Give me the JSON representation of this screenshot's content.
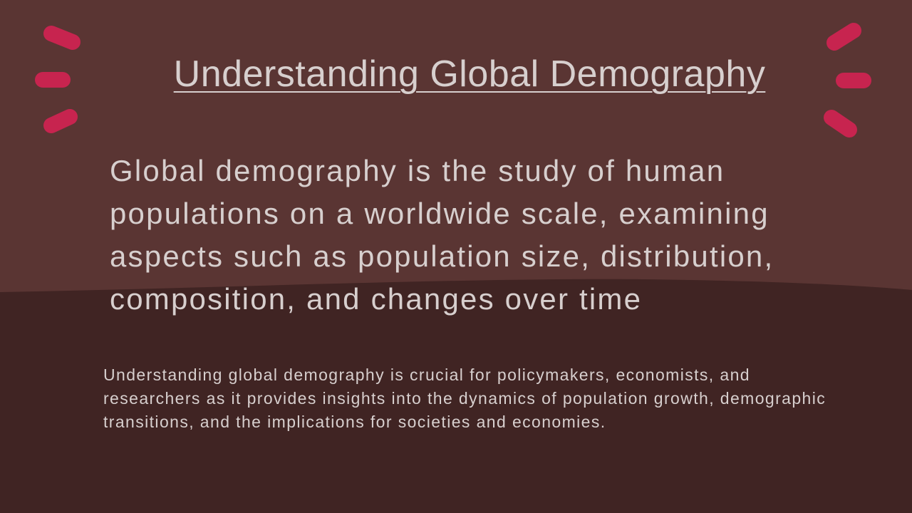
{
  "slide": {
    "title": "Understanding Global Demography",
    "lead": "Global demography is the study of human populations on a worldwide scale, examining aspects such as population size, distribution, composition, and changes over time",
    "support": "Understanding global demography is crucial for policymakers, economists, and researchers as it provides insights into the dynamics of population growth, demographic transitions, and the implications for societies and economies."
  },
  "colors": {
    "background_top": "#5a3533",
    "background_bottom": "#402423",
    "accent_dash": "#c7244f",
    "text": "#d7cfce"
  },
  "decoration": {
    "left_dashes_icon": "burst-lines-left-icon",
    "right_dashes_icon": "burst-lines-right-icon"
  }
}
